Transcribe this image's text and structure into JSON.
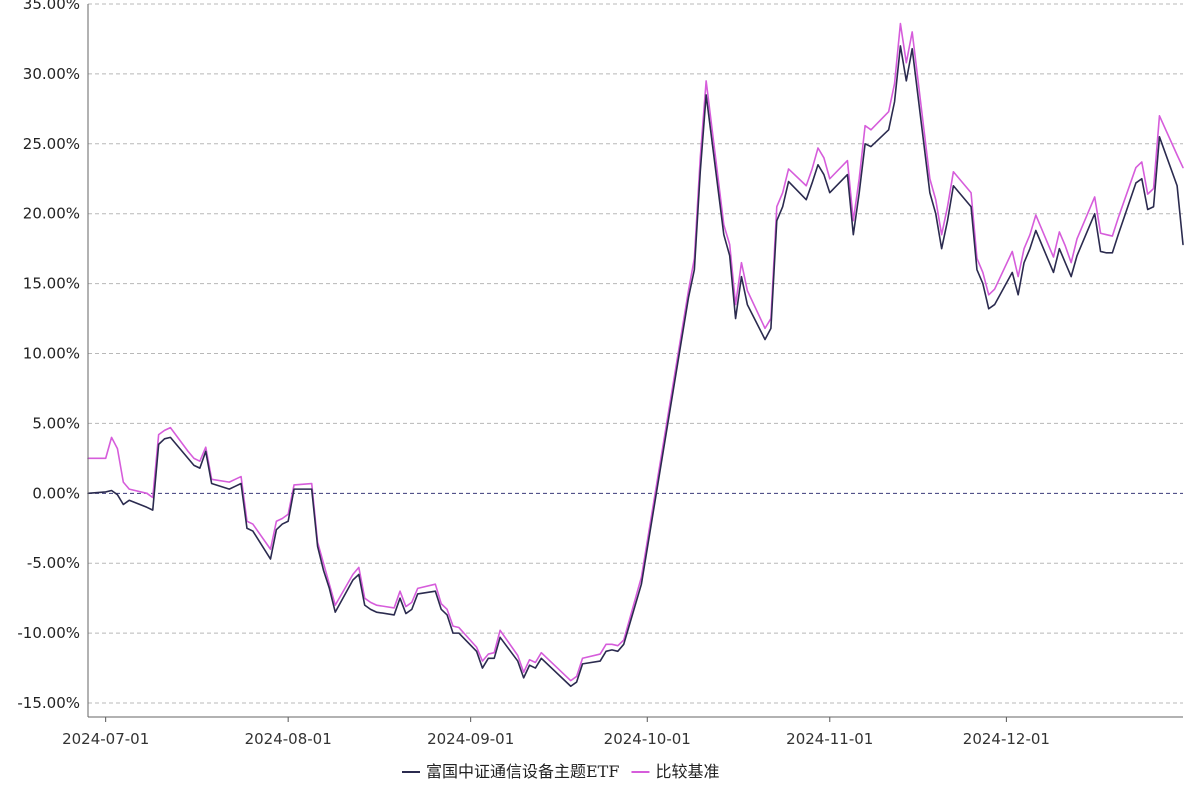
{
  "chart_data": {
    "type": "line",
    "title": "",
    "xlabel": "",
    "ylabel": "",
    "ylim": [
      -16.0,
      35.0
    ],
    "y_ticks": [
      "35.00%",
      "30.00%",
      "25.00%",
      "20.00%",
      "15.00%",
      "10.00%",
      "5.00%",
      "0.00%",
      "-5.00%",
      "-10.00%",
      "-15.00%"
    ],
    "x_ticks": [
      "2024-07-01",
      "2024-08-01",
      "2024-09-01",
      "2024-10-01",
      "2024-11-01",
      "2024-12-01"
    ],
    "grid": "horizontal-dashed",
    "legend_position": "bottom-center",
    "series": [
      {
        "name": "富国中证通信设备主题ETF",
        "color": "#2b2b4f",
        "points": [
          [
            "2024-06-28",
            0.0
          ],
          [
            "2024-07-01",
            0.1
          ],
          [
            "2024-07-02",
            0.2
          ],
          [
            "2024-07-03",
            -0.1
          ],
          [
            "2024-07-04",
            -0.8
          ],
          [
            "2024-07-05",
            -0.5
          ],
          [
            "2024-07-08",
            -1.0
          ],
          [
            "2024-07-09",
            -1.2
          ],
          [
            "2024-07-10",
            3.5
          ],
          [
            "2024-07-11",
            3.9
          ],
          [
            "2024-07-12",
            4.0
          ],
          [
            "2024-07-15",
            2.5
          ],
          [
            "2024-07-16",
            2.0
          ],
          [
            "2024-07-17",
            1.8
          ],
          [
            "2024-07-18",
            3.0
          ],
          [
            "2024-07-19",
            0.7
          ],
          [
            "2024-07-22",
            0.3
          ],
          [
            "2024-07-23",
            0.5
          ],
          [
            "2024-07-24",
            0.7
          ],
          [
            "2024-07-25",
            -2.5
          ],
          [
            "2024-07-26",
            -2.7
          ],
          [
            "2024-07-29",
            -4.7
          ],
          [
            "2024-07-30",
            -2.6
          ],
          [
            "2024-07-31",
            -2.2
          ],
          [
            "2024-08-01",
            -2.0
          ],
          [
            "2024-08-02",
            0.3
          ],
          [
            "2024-08-05",
            0.3
          ],
          [
            "2024-08-06",
            -3.8
          ],
          [
            "2024-08-07",
            -5.5
          ],
          [
            "2024-08-08",
            -6.8
          ],
          [
            "2024-08-09",
            -8.5
          ],
          [
            "2024-08-12",
            -6.2
          ],
          [
            "2024-08-13",
            -5.8
          ],
          [
            "2024-08-14",
            -8.0
          ],
          [
            "2024-08-15",
            -8.3
          ],
          [
            "2024-08-16",
            -8.5
          ],
          [
            "2024-08-19",
            -8.7
          ],
          [
            "2024-08-20",
            -7.5
          ],
          [
            "2024-08-21",
            -8.6
          ],
          [
            "2024-08-22",
            -8.3
          ],
          [
            "2024-08-23",
            -7.2
          ],
          [
            "2024-08-26",
            -7.0
          ],
          [
            "2024-08-27",
            -8.3
          ],
          [
            "2024-08-28",
            -8.7
          ],
          [
            "2024-08-29",
            -10.0
          ],
          [
            "2024-08-30",
            -10.0
          ],
          [
            "2024-09-02",
            -11.3
          ],
          [
            "2024-09-03",
            -12.5
          ],
          [
            "2024-09-04",
            -11.8
          ],
          [
            "2024-09-05",
            -11.8
          ],
          [
            "2024-09-06",
            -10.3
          ],
          [
            "2024-09-09",
            -12.0
          ],
          [
            "2024-09-10",
            -13.2
          ],
          [
            "2024-09-11",
            -12.3
          ],
          [
            "2024-09-12",
            -12.5
          ],
          [
            "2024-09-13",
            -11.8
          ],
          [
            "2024-09-18",
            -13.8
          ],
          [
            "2024-09-19",
            -13.5
          ],
          [
            "2024-09-20",
            -12.2
          ],
          [
            "2024-09-23",
            -12.0
          ],
          [
            "2024-09-24",
            -11.3
          ],
          [
            "2024-09-25",
            -11.2
          ],
          [
            "2024-09-26",
            -11.3
          ],
          [
            "2024-09-27",
            -10.8
          ],
          [
            "2024-09-30",
            -6.5
          ],
          [
            "2024-10-08",
            14.0
          ],
          [
            "2024-10-09",
            16.0
          ],
          [
            "2024-10-10",
            23.0
          ],
          [
            "2024-10-11",
            28.5
          ],
          [
            "2024-10-14",
            18.5
          ],
          [
            "2024-10-15",
            17.0
          ],
          [
            "2024-10-16",
            12.5
          ],
          [
            "2024-10-17",
            15.5
          ],
          [
            "2024-10-18",
            13.5
          ],
          [
            "2024-10-21",
            11.0
          ],
          [
            "2024-10-22",
            11.8
          ],
          [
            "2024-10-23",
            19.5
          ],
          [
            "2024-10-24",
            20.5
          ],
          [
            "2024-10-25",
            22.3
          ],
          [
            "2024-10-28",
            21.0
          ],
          [
            "2024-10-29",
            22.2
          ],
          [
            "2024-10-30",
            23.5
          ],
          [
            "2024-10-31",
            22.8
          ],
          [
            "2024-11-01",
            21.5
          ],
          [
            "2024-11-04",
            22.8
          ],
          [
            "2024-11-05",
            18.5
          ],
          [
            "2024-11-06",
            21.5
          ],
          [
            "2024-11-07",
            25.0
          ],
          [
            "2024-11-08",
            24.8
          ],
          [
            "2024-11-11",
            26.0
          ],
          [
            "2024-11-12",
            28.0
          ],
          [
            "2024-11-13",
            32.0
          ],
          [
            "2024-11-14",
            29.5
          ],
          [
            "2024-11-15",
            31.8
          ],
          [
            "2024-11-18",
            21.5
          ],
          [
            "2024-11-19",
            20.0
          ],
          [
            "2024-11-20",
            17.5
          ],
          [
            "2024-11-21",
            19.5
          ],
          [
            "2024-11-22",
            22.0
          ],
          [
            "2024-11-25",
            20.5
          ],
          [
            "2024-11-26",
            16.0
          ],
          [
            "2024-11-27",
            15.0
          ],
          [
            "2024-11-28",
            13.2
          ],
          [
            "2024-11-29",
            13.5
          ],
          [
            "2024-12-02",
            15.8
          ],
          [
            "2024-12-03",
            14.2
          ],
          [
            "2024-12-04",
            16.5
          ],
          [
            "2024-12-05",
            17.5
          ],
          [
            "2024-12-06",
            18.8
          ],
          [
            "2024-12-09",
            15.8
          ],
          [
            "2024-12-10",
            17.5
          ],
          [
            "2024-12-11",
            16.5
          ],
          [
            "2024-12-12",
            15.5
          ],
          [
            "2024-12-13",
            17.0
          ],
          [
            "2024-12-16",
            20.0
          ],
          [
            "2024-12-17",
            17.3
          ],
          [
            "2024-12-18",
            17.2
          ],
          [
            "2024-12-19",
            17.2
          ],
          [
            "2024-12-20",
            18.5
          ],
          [
            "2024-12-23",
            22.2
          ],
          [
            "2024-12-24",
            22.5
          ],
          [
            "2024-12-25",
            20.3
          ],
          [
            "2024-12-26",
            20.5
          ],
          [
            "2024-12-27",
            25.5
          ],
          [
            "2024-12-30",
            22.0
          ],
          [
            "2024-12-31",
            17.8
          ]
        ]
      },
      {
        "name": "比较基准",
        "color": "#d65ddb",
        "points": [
          [
            "2024-06-28",
            2.5
          ],
          [
            "2024-07-01",
            2.5
          ],
          [
            "2024-07-02",
            4.0
          ],
          [
            "2024-07-03",
            3.2
          ],
          [
            "2024-07-04",
            0.8
          ],
          [
            "2024-07-05",
            0.3
          ],
          [
            "2024-07-08",
            0.0
          ],
          [
            "2024-07-09",
            -0.3
          ],
          [
            "2024-07-10",
            4.2
          ],
          [
            "2024-07-11",
            4.5
          ],
          [
            "2024-07-12",
            4.7
          ],
          [
            "2024-07-15",
            3.0
          ],
          [
            "2024-07-16",
            2.5
          ],
          [
            "2024-07-17",
            2.3
          ],
          [
            "2024-07-18",
            3.3
          ],
          [
            "2024-07-19",
            1.0
          ],
          [
            "2024-07-22",
            0.8
          ],
          [
            "2024-07-23",
            1.0
          ],
          [
            "2024-07-24",
            1.2
          ],
          [
            "2024-07-25",
            -2.0
          ],
          [
            "2024-07-26",
            -2.2
          ],
          [
            "2024-07-29",
            -4.0
          ],
          [
            "2024-07-30",
            -2.0
          ],
          [
            "2024-07-31",
            -1.8
          ],
          [
            "2024-08-01",
            -1.5
          ],
          [
            "2024-08-02",
            0.6
          ],
          [
            "2024-08-05",
            0.7
          ],
          [
            "2024-08-06",
            -3.5
          ],
          [
            "2024-08-07",
            -5.0
          ],
          [
            "2024-08-08",
            -6.5
          ],
          [
            "2024-08-09",
            -8.0
          ],
          [
            "2024-08-12",
            -5.8
          ],
          [
            "2024-08-13",
            -5.3
          ],
          [
            "2024-08-14",
            -7.5
          ],
          [
            "2024-08-15",
            -7.8
          ],
          [
            "2024-08-16",
            -8.0
          ],
          [
            "2024-08-19",
            -8.2
          ],
          [
            "2024-08-20",
            -7.0
          ],
          [
            "2024-08-21",
            -8.1
          ],
          [
            "2024-08-22",
            -7.8
          ],
          [
            "2024-08-23",
            -6.8
          ],
          [
            "2024-08-26",
            -6.5
          ],
          [
            "2024-08-27",
            -7.9
          ],
          [
            "2024-08-28",
            -8.3
          ],
          [
            "2024-08-29",
            -9.5
          ],
          [
            "2024-08-30",
            -9.6
          ],
          [
            "2024-09-02",
            -11.0
          ],
          [
            "2024-09-03",
            -12.0
          ],
          [
            "2024-09-04",
            -11.5
          ],
          [
            "2024-09-05",
            -11.4
          ],
          [
            "2024-09-06",
            -9.8
          ],
          [
            "2024-09-09",
            -11.6
          ],
          [
            "2024-09-10",
            -12.8
          ],
          [
            "2024-09-11",
            -11.9
          ],
          [
            "2024-09-12",
            -12.1
          ],
          [
            "2024-09-13",
            -11.4
          ],
          [
            "2024-09-18",
            -13.4
          ],
          [
            "2024-09-19",
            -13.1
          ],
          [
            "2024-09-20",
            -11.8
          ],
          [
            "2024-09-23",
            -11.5
          ],
          [
            "2024-09-24",
            -10.8
          ],
          [
            "2024-09-25",
            -10.8
          ],
          [
            "2024-09-26",
            -10.9
          ],
          [
            "2024-09-27",
            -10.5
          ],
          [
            "2024-09-30",
            -6.0
          ],
          [
            "2024-10-08",
            14.5
          ],
          [
            "2024-10-09",
            16.8
          ],
          [
            "2024-10-10",
            24.0
          ],
          [
            "2024-10-11",
            29.5
          ],
          [
            "2024-10-14",
            19.2
          ],
          [
            "2024-10-15",
            17.8
          ],
          [
            "2024-10-16",
            13.5
          ],
          [
            "2024-10-17",
            16.5
          ],
          [
            "2024-10-18",
            14.5
          ],
          [
            "2024-10-21",
            11.8
          ],
          [
            "2024-10-22",
            12.5
          ],
          [
            "2024-10-23",
            20.5
          ],
          [
            "2024-10-24",
            21.5
          ],
          [
            "2024-10-25",
            23.2
          ],
          [
            "2024-10-28",
            22.0
          ],
          [
            "2024-10-29",
            23.2
          ],
          [
            "2024-10-30",
            24.7
          ],
          [
            "2024-10-31",
            24.0
          ],
          [
            "2024-11-01",
            22.5
          ],
          [
            "2024-11-04",
            23.8
          ],
          [
            "2024-11-05",
            19.5
          ],
          [
            "2024-11-06",
            22.5
          ],
          [
            "2024-11-07",
            26.3
          ],
          [
            "2024-11-08",
            26.0
          ],
          [
            "2024-11-11",
            27.3
          ],
          [
            "2024-11-12",
            29.3
          ],
          [
            "2024-11-13",
            33.6
          ],
          [
            "2024-11-14",
            30.8
          ],
          [
            "2024-11-15",
            33.0
          ],
          [
            "2024-11-18",
            22.5
          ],
          [
            "2024-11-19",
            21.0
          ],
          [
            "2024-11-20",
            18.5
          ],
          [
            "2024-11-21",
            20.5
          ],
          [
            "2024-11-22",
            23.0
          ],
          [
            "2024-11-25",
            21.5
          ],
          [
            "2024-11-26",
            16.8
          ],
          [
            "2024-11-27",
            15.8
          ],
          [
            "2024-11-28",
            14.2
          ],
          [
            "2024-11-29",
            14.6
          ],
          [
            "2024-12-02",
            17.3
          ],
          [
            "2024-12-03",
            15.5
          ],
          [
            "2024-12-04",
            17.5
          ],
          [
            "2024-12-05",
            18.5
          ],
          [
            "2024-12-06",
            19.9
          ],
          [
            "2024-12-09",
            16.9
          ],
          [
            "2024-12-10",
            18.7
          ],
          [
            "2024-12-11",
            17.7
          ],
          [
            "2024-12-12",
            16.5
          ],
          [
            "2024-12-13",
            18.2
          ],
          [
            "2024-12-16",
            21.2
          ],
          [
            "2024-12-17",
            18.6
          ],
          [
            "2024-12-18",
            18.5
          ],
          [
            "2024-12-19",
            18.4
          ],
          [
            "2024-12-20",
            19.7
          ],
          [
            "2024-12-23",
            23.3
          ],
          [
            "2024-12-24",
            23.7
          ],
          [
            "2024-12-25",
            21.4
          ],
          [
            "2024-12-26",
            21.8
          ],
          [
            "2024-12-27",
            27.0
          ],
          [
            "2024-12-30",
            24.2
          ],
          [
            "2024-12-31",
            23.3
          ]
        ]
      }
    ]
  }
}
